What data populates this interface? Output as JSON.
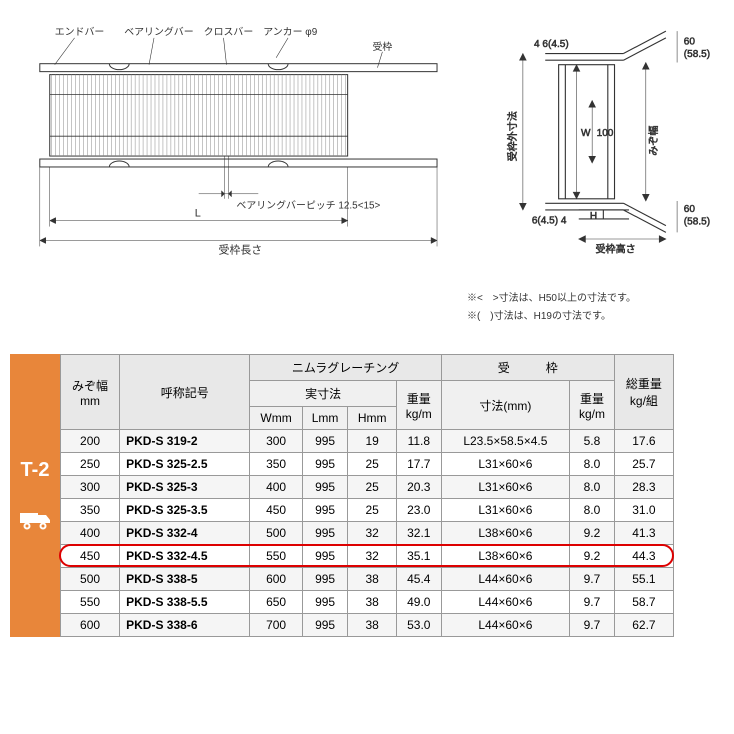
{
  "diagram_left": {
    "labels": {
      "endbar": "エンドバー",
      "bearingbar": "ベアリングバー",
      "crossbar": "クロスバー",
      "anchor": "アンカー φ9",
      "frame": "受枠",
      "pitch": "ベアリングバーピッチ 12.5<15>",
      "L": "L",
      "frame_length": "受枠長さ"
    }
  },
  "diagram_right": {
    "labels": {
      "top_left": "4 6(4.5)",
      "bottom_left": "6(4.5) 4",
      "right1": "60",
      "right1b": "(58.5)",
      "right2": "60",
      "right2b": "(58.5)",
      "frame_outer": "受枠外寸法",
      "groove_width": "みぞ幅",
      "W": "W",
      "hundred": "100",
      "H": "H",
      "frame_height": "受枠高さ"
    },
    "note1": "※<　>寸法は、H50以上の寸法です。",
    "note2": "※(　)寸法は、H19の寸法です。"
  },
  "table": {
    "side_label": "T-2",
    "headers": {
      "groove": "みぞ幅",
      "groove_unit": "mm",
      "designation": "呼称記号",
      "grating": "ニムラグレーチング",
      "actual": "実寸法",
      "W": "Wmm",
      "L": "Lmm",
      "H": "Hmm",
      "weight": "重量",
      "weight_unit": "kg/m",
      "frame": "受",
      "frame2": "枠",
      "dim": "寸法(mm)",
      "frame_weight": "重量",
      "frame_weight_unit": "kg/m",
      "total": "総重量",
      "total_unit": "kg/組"
    },
    "rows": [
      {
        "groove": "200",
        "code": "PKD-S 319-2",
        "W": "300",
        "L": "995",
        "H": "19",
        "wt": "11.8",
        "dim": "L23.5×58.5×4.5",
        "fwt": "5.8",
        "total": "17.6"
      },
      {
        "groove": "250",
        "code": "PKD-S 325-2.5",
        "W": "350",
        "L": "995",
        "H": "25",
        "wt": "17.7",
        "dim": "L31×60×6",
        "fwt": "8.0",
        "total": "25.7"
      },
      {
        "groove": "300",
        "code": "PKD-S 325-3",
        "W": "400",
        "L": "995",
        "H": "25",
        "wt": "20.3",
        "dim": "L31×60×6",
        "fwt": "8.0",
        "total": "28.3"
      },
      {
        "groove": "350",
        "code": "PKD-S 325-3.5",
        "W": "450",
        "L": "995",
        "H": "25",
        "wt": "23.0",
        "dim": "L31×60×6",
        "fwt": "8.0",
        "total": "31.0"
      },
      {
        "groove": "400",
        "code": "PKD-S 332-4",
        "W": "500",
        "L": "995",
        "H": "32",
        "wt": "32.1",
        "dim": "L38×60×6",
        "fwt": "9.2",
        "total": "41.3"
      },
      {
        "groove": "450",
        "code": "PKD-S 332-4.5",
        "W": "550",
        "L": "995",
        "H": "32",
        "wt": "35.1",
        "dim": "L38×60×6",
        "fwt": "9.2",
        "total": "44.3",
        "highlight": true
      },
      {
        "groove": "500",
        "code": "PKD-S 338-5",
        "W": "600",
        "L": "995",
        "H": "38",
        "wt": "45.4",
        "dim": "L44×60×6",
        "fwt": "9.7",
        "total": "55.1"
      },
      {
        "groove": "550",
        "code": "PKD-S 338-5.5",
        "W": "650",
        "L": "995",
        "H": "38",
        "wt": "49.0",
        "dim": "L44×60×6",
        "fwt": "9.7",
        "total": "58.7"
      },
      {
        "groove": "600",
        "code": "PKD-S 338-6",
        "W": "700",
        "L": "995",
        "H": "38",
        "wt": "53.0",
        "dim": "L44×60×6",
        "fwt": "9.7",
        "total": "62.7"
      }
    ]
  },
  "colors": {
    "accent": "#e8863a",
    "highlight": "#d00000",
    "grid": "#999",
    "header_bg": "#e8e8e8"
  }
}
